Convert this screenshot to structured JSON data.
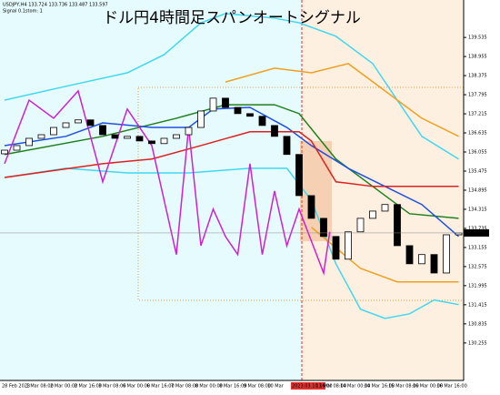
{
  "chart_data": {
    "type": "candlestick",
    "title": "ドル円4時間足スパンオートシグナル",
    "header": "USDJPY,H4  133.724 133.736 133.487 133.597",
    "indicator": "Signal 0.1stom: 1",
    "xlabels": [
      "28 Feb 2023",
      "1 Mar 08:00",
      "2 Mar 00:00",
      "2 Mar 16:00",
      "3 Mar 08:00",
      "6 Mar 00:00",
      "6 Mar 16:00",
      "7 Mar 08:00",
      "8 Mar 00:00",
      "8 Mar 16:00",
      "9 Mar 08:00",
      "10 Mar",
      "2023.03.10 16:00",
      "13 Mar 08:00",
      "14 Mar 00:00",
      "14 Mar 16:00",
      "15 Mar 08:00",
      "16 Mar 00:00",
      "16 Mar 16:00"
    ],
    "highlight_label": 12,
    "ylim": [
      129.2,
      140.45
    ],
    "yticks": [
      139.535,
      138.955,
      138.375,
      137.795,
      137.215,
      136.635,
      136.055,
      135.475,
      134.895,
      134.315,
      133.735,
      133.155,
      132.575,
      131.995,
      131.415,
      130.835,
      130.255
    ],
    "current_price": 133.597,
    "open": [
      136.0,
      136.11,
      136.25,
      136.47,
      136.58,
      136.8,
      136.94,
      137.03,
      136.86,
      136.58,
      136.47,
      136.53,
      136.39,
      136.31,
      136.47,
      136.58,
      136.8,
      137.3,
      137.69,
      137.41,
      137.22,
      137.14,
      136.86,
      136.53,
      135.98,
      134.73,
      134.04,
      133.49,
      132.8,
      133.63,
      134.04,
      134.26,
      134.46,
      133.21,
      132.66,
      132.94,
      132.38,
      133.54
    ],
    "close": [
      136.11,
      136.25,
      136.47,
      136.58,
      136.8,
      136.94,
      137.03,
      136.86,
      136.58,
      136.47,
      136.53,
      136.39,
      136.31,
      136.47,
      136.58,
      136.8,
      137.3,
      137.69,
      137.41,
      137.22,
      137.14,
      136.86,
      136.53,
      135.98,
      134.73,
      134.04,
      133.49,
      132.8,
      133.63,
      134.04,
      134.26,
      134.46,
      133.21,
      132.66,
      132.94,
      132.38,
      133.54,
      133.597
    ],
    "up_color": "#ffffff",
    "down_color": "#000000",
    "lines": [
      {
        "color": "#40d8f0",
        "x": [
          0,
          5,
          10,
          13,
          16,
          18,
          22,
          24,
          27,
          30,
          32,
          34,
          37
        ],
        "values": [
          137.63,
          138.05,
          138.46,
          139.01,
          139.98,
          140.26,
          140.12,
          139.98,
          139.57,
          138.74,
          137.63,
          136.53,
          135.84
        ]
      },
      {
        "color": "#40d8f0",
        "x": [
          0,
          5,
          10,
          15,
          20,
          23,
          25,
          27,
          29,
          31,
          33,
          35,
          37
        ],
        "values": [
          135.28,
          135.56,
          135.42,
          135.42,
          135.56,
          135.56,
          134.59,
          132.66,
          131.28,
          131.0,
          131.14,
          131.56,
          131.42
        ]
      },
      {
        "color": "#f0a020",
        "x": [
          18,
          22,
          25,
          28,
          31,
          34,
          37
        ],
        "values": [
          138.18,
          138.6,
          138.46,
          138.74,
          137.91,
          137.08,
          136.53
        ]
      },
      {
        "color": "#f0a020",
        "x": [
          25,
          29,
          32,
          37
        ],
        "values": [
          133.77,
          132.52,
          132.11,
          132.11
        ]
      },
      {
        "color": "#208020",
        "x": [
          0,
          8,
          14,
          18,
          22,
          24,
          27,
          30,
          33,
          37
        ],
        "values": [
          135.98,
          136.53,
          137.08,
          137.49,
          137.49,
          137.22,
          135.84,
          135.01,
          134.18,
          134.04
        ]
      },
      {
        "color": "#2050e0",
        "x": [
          0,
          5,
          8,
          12,
          15,
          17,
          20,
          23,
          25,
          28,
          31,
          34,
          37
        ],
        "values": [
          136.25,
          136.53,
          136.94,
          136.8,
          136.8,
          137.36,
          137.41,
          136.8,
          136.25,
          135.56,
          135.01,
          134.46,
          133.49
        ]
      },
      {
        "color": "#e02020",
        "x": [
          0,
          8,
          12,
          16,
          20,
          24,
          25,
          27,
          30,
          34,
          37
        ],
        "values": [
          135.28,
          135.7,
          135.84,
          136.25,
          136.67,
          136.67,
          136.39,
          135.15,
          135.01,
          135.01,
          135.01
        ]
      },
      {
        "color": "#d020d0",
        "x": [
          0,
          2,
          4,
          6,
          8,
          10,
          12,
          14,
          15,
          16,
          17,
          18,
          19,
          20,
          21,
          22,
          23,
          24,
          25,
          26,
          26.5
        ],
        "values": [
          135.7,
          137.63,
          137.08,
          137.91,
          135.15,
          137.36,
          136.25,
          132.94,
          136.8,
          133.21,
          134.32,
          133.49,
          132.94,
          135.7,
          132.94,
          134.87,
          133.21,
          134.32,
          133.35,
          132.38,
          133.63
        ]
      }
    ]
  }
}
